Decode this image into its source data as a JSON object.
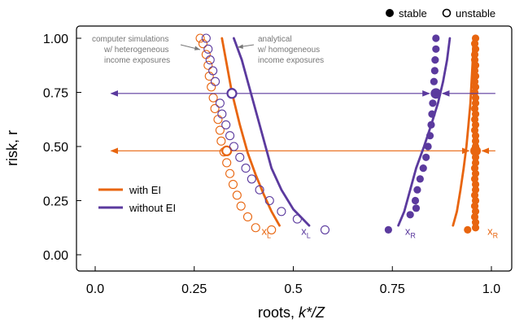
{
  "chart_data": {
    "type": "scatter",
    "xlabel_prefix": "roots, ",
    "xlabel_var": "k*/Z",
    "ylabel": "risk, r",
    "xlim": [
      -0.05,
      1.02
    ],
    "ylim": [
      -0.05,
      1.05
    ],
    "x_ticks": [
      {
        "value": 0.0,
        "label": "0.0"
      },
      {
        "value": 0.25,
        "label": "0.25"
      },
      {
        "value": 0.5,
        "label": "0.5"
      },
      {
        "value": 0.75,
        "label": "0.75"
      },
      {
        "value": 1.0,
        "label": "1.0"
      }
    ],
    "y_ticks": [
      {
        "value": 0.0,
        "label": "0.00"
      },
      {
        "value": 0.25,
        "label": "0.25"
      },
      {
        "value": 0.5,
        "label": "0.50"
      },
      {
        "value": 0.75,
        "label": "0.75"
      },
      {
        "value": 1.0,
        "label": "1.00"
      }
    ],
    "grid": false,
    "colors": {
      "with_ei": "#e8650f",
      "without_ei": "#5b3a9e",
      "annotation": "#777777",
      "axis": "#000000"
    },
    "top_legend": {
      "stable": "stable",
      "unstable": "unstable",
      "placement": "top-right"
    },
    "line_legend": {
      "placement": "lower-left",
      "items": [
        {
          "label": "with EI",
          "color": "#e8650f"
        },
        {
          "label": "without EI",
          "color": "#5b3a9e"
        }
      ]
    },
    "annotations": [
      {
        "lines": [
          "computer simulations",
          "w/ heterogeneous",
          "income exposures"
        ]
      },
      {
        "lines": [
          "analytical",
          "w/ homogeneous",
          "income exposures"
        ]
      }
    ],
    "root_labels": [
      {
        "main": "x",
        "sub": "L",
        "x": 0.42,
        "y": 0.11,
        "color": "#e8650f"
      },
      {
        "main": "x",
        "sub": "L",
        "x": 0.52,
        "y": 0.11,
        "color": "#5b3a9e"
      },
      {
        "main": "x",
        "sub": "R",
        "x": 0.782,
        "y": 0.11,
        "color": "#5b3a9e"
      },
      {
        "main": "x",
        "sub": "R",
        "x": 0.99,
        "y": 0.11,
        "color": "#e8650f"
      }
    ],
    "series": [
      {
        "name": "with EI",
        "color": "#e8650f",
        "lines": [
          [
            [
              0.32,
              1.0
            ],
            [
              0.33,
              0.9
            ],
            [
              0.345,
              0.75
            ],
            [
              0.365,
              0.6
            ],
            [
              0.385,
              0.47
            ],
            [
              0.405,
              0.37
            ],
            [
              0.425,
              0.28
            ],
            [
              0.445,
              0.2
            ],
            [
              0.465,
              0.135
            ]
          ],
          [
            [
              0.955,
              1.0
            ],
            [
              0.953,
              0.9
            ],
            [
              0.95,
              0.8
            ],
            [
              0.947,
              0.7
            ],
            [
              0.942,
              0.6
            ],
            [
              0.937,
              0.5
            ],
            [
              0.93,
              0.4
            ],
            [
              0.922,
              0.3
            ],
            [
              0.913,
              0.2
            ],
            [
              0.903,
              0.135
            ]
          ]
        ],
        "unstable_points": [
          [
            0.265,
            1.0
          ],
          [
            0.272,
            0.975
          ],
          [
            0.28,
            0.925
          ],
          [
            0.285,
            0.875
          ],
          [
            0.288,
            0.825
          ],
          [
            0.293,
            0.775
          ],
          [
            0.298,
            0.725
          ],
          [
            0.302,
            0.675
          ],
          [
            0.31,
            0.625
          ],
          [
            0.315,
            0.575
          ],
          [
            0.318,
            0.525
          ],
          [
            0.325,
            0.475
          ],
          [
            0.332,
            0.425
          ],
          [
            0.34,
            0.375
          ],
          [
            0.348,
            0.325
          ],
          [
            0.358,
            0.275
          ],
          [
            0.368,
            0.225
          ],
          [
            0.385,
            0.175
          ],
          [
            0.405,
            0.125
          ],
          [
            0.445,
            0.115
          ]
        ],
        "stable_points": [
          [
            0.96,
            1.0
          ],
          [
            0.958,
            0.975
          ],
          [
            0.96,
            0.95
          ],
          [
            0.958,
            0.925
          ],
          [
            0.958,
            0.9
          ],
          [
            0.96,
            0.875
          ],
          [
            0.958,
            0.85
          ],
          [
            0.96,
            0.825
          ],
          [
            0.958,
            0.8
          ],
          [
            0.96,
            0.775
          ],
          [
            0.958,
            0.75
          ],
          [
            0.96,
            0.725
          ],
          [
            0.96,
            0.7
          ],
          [
            0.958,
            0.675
          ],
          [
            0.96,
            0.65
          ],
          [
            0.958,
            0.625
          ],
          [
            0.96,
            0.6
          ],
          [
            0.958,
            0.575
          ],
          [
            0.96,
            0.55
          ],
          [
            0.96,
            0.525
          ],
          [
            0.96,
            0.5
          ],
          [
            0.958,
            0.475
          ],
          [
            0.96,
            0.45
          ],
          [
            0.96,
            0.425
          ],
          [
            0.958,
            0.4
          ],
          [
            0.96,
            0.375
          ],
          [
            0.958,
            0.35
          ],
          [
            0.96,
            0.325
          ],
          [
            0.96,
            0.3
          ],
          [
            0.958,
            0.275
          ],
          [
            0.96,
            0.25
          ],
          [
            0.958,
            0.225
          ],
          [
            0.96,
            0.2
          ],
          [
            0.958,
            0.175
          ],
          [
            0.96,
            0.15
          ],
          [
            0.96,
            0.125
          ],
          [
            0.94,
            0.115
          ]
        ],
        "arrow": {
          "y": 0.48,
          "x_from": 1.01,
          "x_to": 0.04,
          "x_stable": 0.96,
          "x_unstable": 0.332,
          "x_right_start": 0.96
        }
      },
      {
        "name": "without EI",
        "color": "#5b3a9e",
        "lines": [
          [
            [
              0.35,
              1.0
            ],
            [
              0.37,
              0.9
            ],
            [
              0.385,
              0.8
            ],
            [
              0.4,
              0.7
            ],
            [
              0.415,
              0.6
            ],
            [
              0.43,
              0.5
            ],
            [
              0.445,
              0.4
            ],
            [
              0.47,
              0.3
            ],
            [
              0.5,
              0.21
            ],
            [
              0.54,
              0.135
            ]
          ],
          [
            [
              0.895,
              1.0
            ],
            [
              0.888,
              0.9
            ],
            [
              0.878,
              0.8
            ],
            [
              0.865,
              0.7
            ],
            [
              0.848,
              0.6
            ],
            [
              0.83,
              0.5
            ],
            [
              0.81,
              0.4
            ],
            [
              0.795,
              0.3
            ],
            [
              0.78,
              0.2
            ],
            [
              0.765,
              0.135
            ]
          ]
        ],
        "unstable_points": [
          [
            0.28,
            1.0
          ],
          [
            0.285,
            0.95
          ],
          [
            0.29,
            0.9
          ],
          [
            0.297,
            0.85
          ],
          [
            0.303,
            0.8
          ],
          [
            0.345,
            0.75
          ],
          [
            0.315,
            0.7
          ],
          [
            0.32,
            0.65
          ],
          [
            0.33,
            0.6
          ],
          [
            0.34,
            0.55
          ],
          [
            0.35,
            0.5
          ],
          [
            0.365,
            0.45
          ],
          [
            0.38,
            0.4
          ],
          [
            0.395,
            0.35
          ],
          [
            0.415,
            0.3
          ],
          [
            0.44,
            0.25
          ],
          [
            0.47,
            0.2
          ],
          [
            0.51,
            0.165
          ],
          [
            0.58,
            0.115
          ]
        ],
        "stable_points": [
          [
            0.86,
            1.0
          ],
          [
            0.86,
            0.95
          ],
          [
            0.858,
            0.9
          ],
          [
            0.857,
            0.85
          ],
          [
            0.855,
            0.8
          ],
          [
            0.86,
            0.75
          ],
          [
            0.852,
            0.7
          ],
          [
            0.85,
            0.65
          ],
          [
            0.848,
            0.6
          ],
          [
            0.845,
            0.55
          ],
          [
            0.84,
            0.5
          ],
          [
            0.835,
            0.45
          ],
          [
            0.828,
            0.4
          ],
          [
            0.82,
            0.35
          ],
          [
            0.813,
            0.3
          ],
          [
            0.808,
            0.25
          ],
          [
            0.81,
            0.215
          ],
          [
            0.795,
            0.185
          ],
          [
            0.74,
            0.115
          ]
        ],
        "arrow": {
          "y": 0.745,
          "x_from": 1.01,
          "x_to": 0.04,
          "x_stable": 0.86,
          "x_unstable": 0.345,
          "x_right_start": 0.86
        }
      }
    ]
  }
}
